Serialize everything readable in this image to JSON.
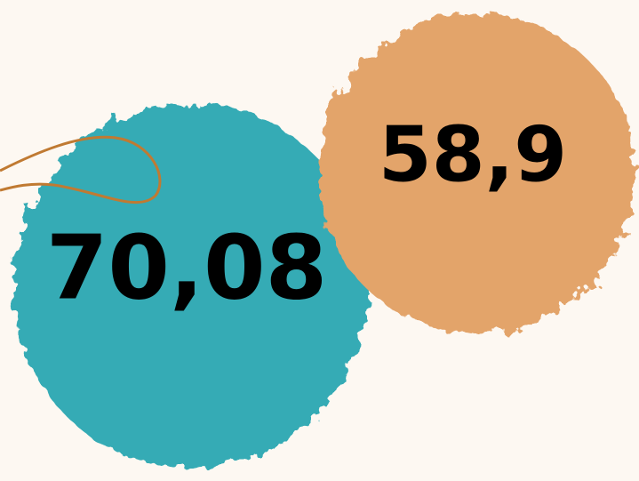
{
  "stats": [
    {
      "label": "70,08"
    },
    {
      "label": "58,9"
    }
  ]
}
